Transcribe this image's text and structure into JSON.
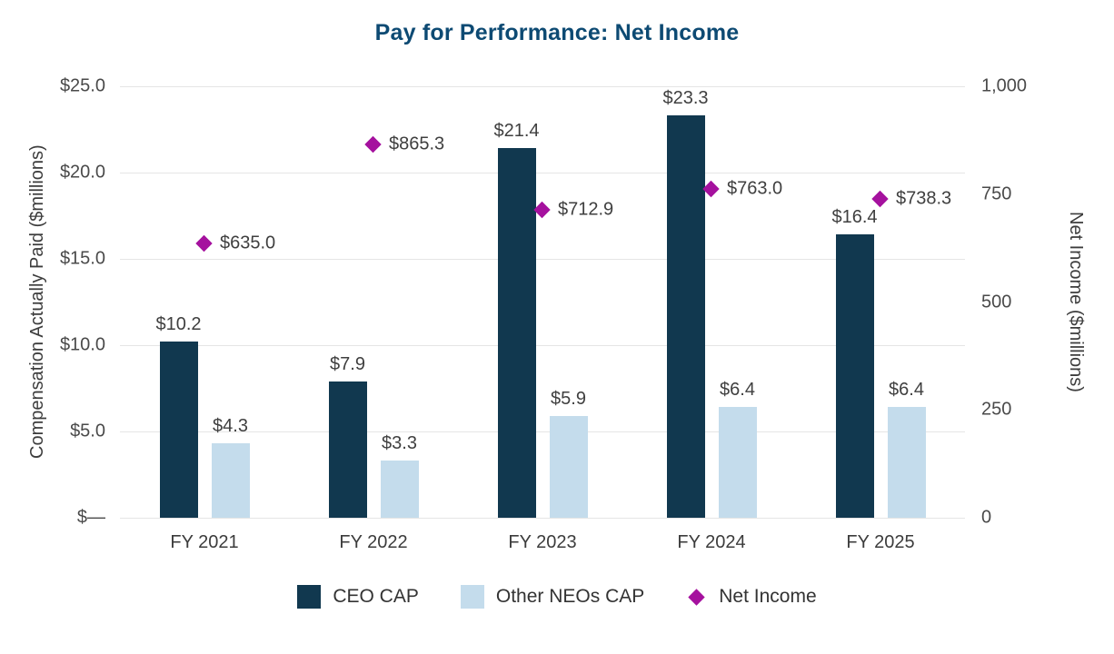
{
  "chart_data": {
    "type": "bar",
    "title": "Pay for Performance: Net Income",
    "categories": [
      "FY 2021",
      "FY 2022",
      "FY 2023",
      "FY 2024",
      "FY 2025"
    ],
    "series": [
      {
        "name": "CEO CAP",
        "type": "bar",
        "axis": "left",
        "color": "#11384f",
        "values": [
          10.2,
          7.9,
          21.4,
          23.3,
          16.4
        ],
        "labels": [
          "$10.2",
          "$7.9",
          "$21.4",
          "$23.3",
          "$16.4"
        ]
      },
      {
        "name": "Other NEOs CAP",
        "type": "bar",
        "axis": "left",
        "color": "#c4dcec",
        "values": [
          4.3,
          3.3,
          5.9,
          6.4,
          6.4
        ],
        "labels": [
          "$4.3",
          "$3.3",
          "$5.9",
          "$6.4",
          "$6.4"
        ]
      },
      {
        "name": "Net Income",
        "type": "scatter-diamond",
        "axis": "right",
        "color": "#a5119e",
        "values": [
          635.0,
          865.3,
          712.9,
          763.0,
          738.3
        ],
        "labels": [
          "$635.0",
          "$865.3",
          "$712.9",
          "$763.0",
          "$738.3"
        ]
      }
    ],
    "left_axis": {
      "label": "Compensation Actually Paid ($millions)",
      "min": 0,
      "max": 25,
      "ticks": [
        {
          "value": 25,
          "label": "$25.0"
        },
        {
          "value": 20,
          "label": "$20.0"
        },
        {
          "value": 15,
          "label": "$15.0"
        },
        {
          "value": 10,
          "label": "$10.0"
        },
        {
          "value": 5,
          "label": "$5.0"
        },
        {
          "value": 0,
          "label": "$—"
        }
      ]
    },
    "right_axis": {
      "label": "Net Income ($millions)",
      "min": 0,
      "max": 1000,
      "ticks": [
        {
          "value": 1000,
          "label": "1,000"
        },
        {
          "value": 750,
          "label": "750"
        },
        {
          "value": 500,
          "label": "500"
        },
        {
          "value": 250,
          "label": "250"
        },
        {
          "value": 0,
          "label": "0"
        }
      ]
    },
    "legend": [
      "CEO CAP",
      "Other NEOs CAP",
      "Net Income"
    ],
    "grid": "horizontal",
    "legend_position": "bottom"
  }
}
